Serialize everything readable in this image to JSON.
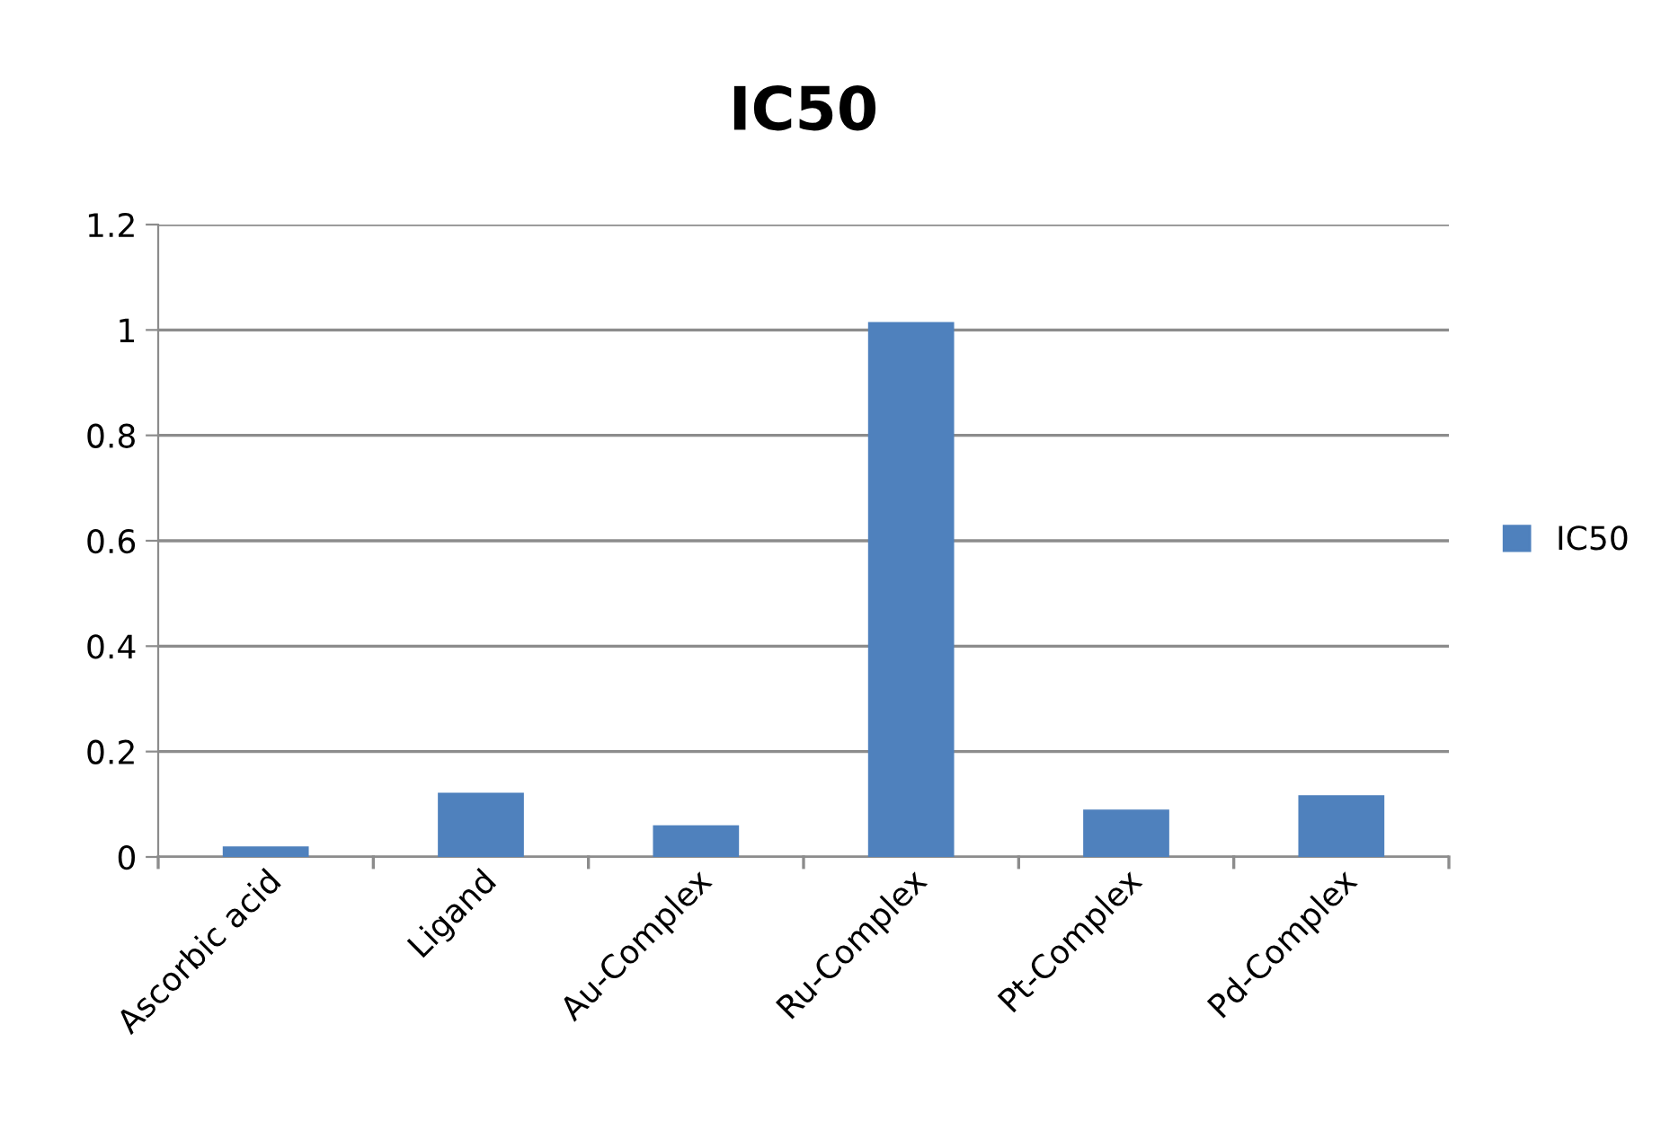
{
  "chart_data": {
    "type": "bar",
    "title": "IC50",
    "categories": [
      "Ascorbic acid",
      "Ligand",
      "Au-Complex",
      "Ru-Complex",
      "Pt-Complex",
      "Pd-Complex"
    ],
    "series": [
      {
        "name": "IC50",
        "color": "#4f81bd",
        "values": [
          0.02,
          0.122,
          0.06,
          1.015,
          0.09,
          0.117
        ]
      }
    ],
    "ylim": [
      0,
      1.2
    ],
    "yticks": [
      0,
      0.2,
      0.4,
      0.6,
      0.8,
      1,
      1.2
    ],
    "grid": "y",
    "legend": "right"
  }
}
